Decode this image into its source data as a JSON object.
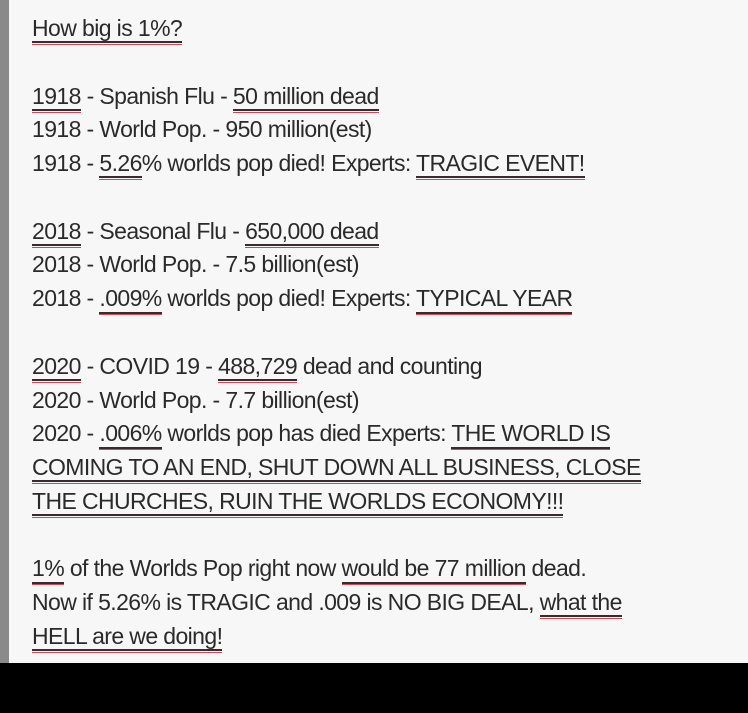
{
  "title": [
    {
      "text": "How big is 1%?",
      "u": true
    }
  ],
  "blocks": [
    [
      [
        {
          "text": "1918",
          "u": true
        },
        {
          "text": " - Spanish Flu - ",
          "u": false
        },
        {
          "text": "50 million dead",
          "u": true
        }
      ],
      [
        {
          "text": "1918 - World Pop. - 950 million(est)",
          "u": false
        }
      ],
      [
        {
          "text": "1918 - ",
          "u": false
        },
        {
          "text": "5.26",
          "u": true
        },
        {
          "text": "% worlds pop died!  Experts: ",
          "u": false
        },
        {
          "text": "TRAGIC EVENT!",
          "u": true
        }
      ]
    ],
    [
      [
        {
          "text": "2018",
          "u": true
        },
        {
          "text": " - Seasonal Flu - ",
          "u": false
        },
        {
          "text": "650,000 dead",
          "u": true
        }
      ],
      [
        {
          "text": "2018 - World Pop. - 7.5 billion(est)",
          "u": false
        }
      ],
      [
        {
          "text": "2018 - ",
          "u": false
        },
        {
          "text": ".009%",
          "u": true
        },
        {
          "text": " worlds pop died!   Experts:  ",
          "u": false
        },
        {
          "text": "TYPICAL YEAR",
          "u": true
        }
      ]
    ],
    [
      [
        {
          "text": "2020",
          "u": true
        },
        {
          "text": " - COVID 19 - ",
          "u": false
        },
        {
          "text": "488,729",
          "u": true
        },
        {
          "text": " dead and counting",
          "u": false
        }
      ],
      [
        {
          "text": "2020 - World Pop. - 7.7 billion(est)",
          "u": false
        }
      ],
      [
        {
          "text": "2020 - ",
          "u": false
        },
        {
          "text": ".006%",
          "u": true
        },
        {
          "text": " worlds pop has died Experts: ",
          "u": false
        },
        {
          "text": "THE WORLD IS",
          "u": true
        }
      ],
      [
        {
          "text": "COMING TO AN END, SHUT DOWN ALL BUSINESS, CLOSE",
          "u": true
        }
      ],
      [
        {
          "text": "THE CHURCHES, RUIN THE WORLDS ECONOMY!!!",
          "u": true
        }
      ]
    ],
    [
      [
        {
          "text": "1%",
          "u": true
        },
        {
          "text": " of the Worlds Pop right now ",
          "u": false
        },
        {
          "text": "would be 77 million",
          "u": true
        },
        {
          "text": " dead.",
          "u": false
        }
      ],
      [
        {
          "text": "Now if 5.26% is TRAGIC and .009 is NO BIG DEAL, ",
          "u": false
        },
        {
          "text": "what the",
          "u": true
        }
      ],
      [
        {
          "text": "HELL are we doing!",
          "u": true
        }
      ]
    ]
  ],
  "colors": {
    "text": "#2a2a2a",
    "underline_red": "#c84a5a",
    "background": "#f7f7f7",
    "bottom_bar": "#000000"
  }
}
